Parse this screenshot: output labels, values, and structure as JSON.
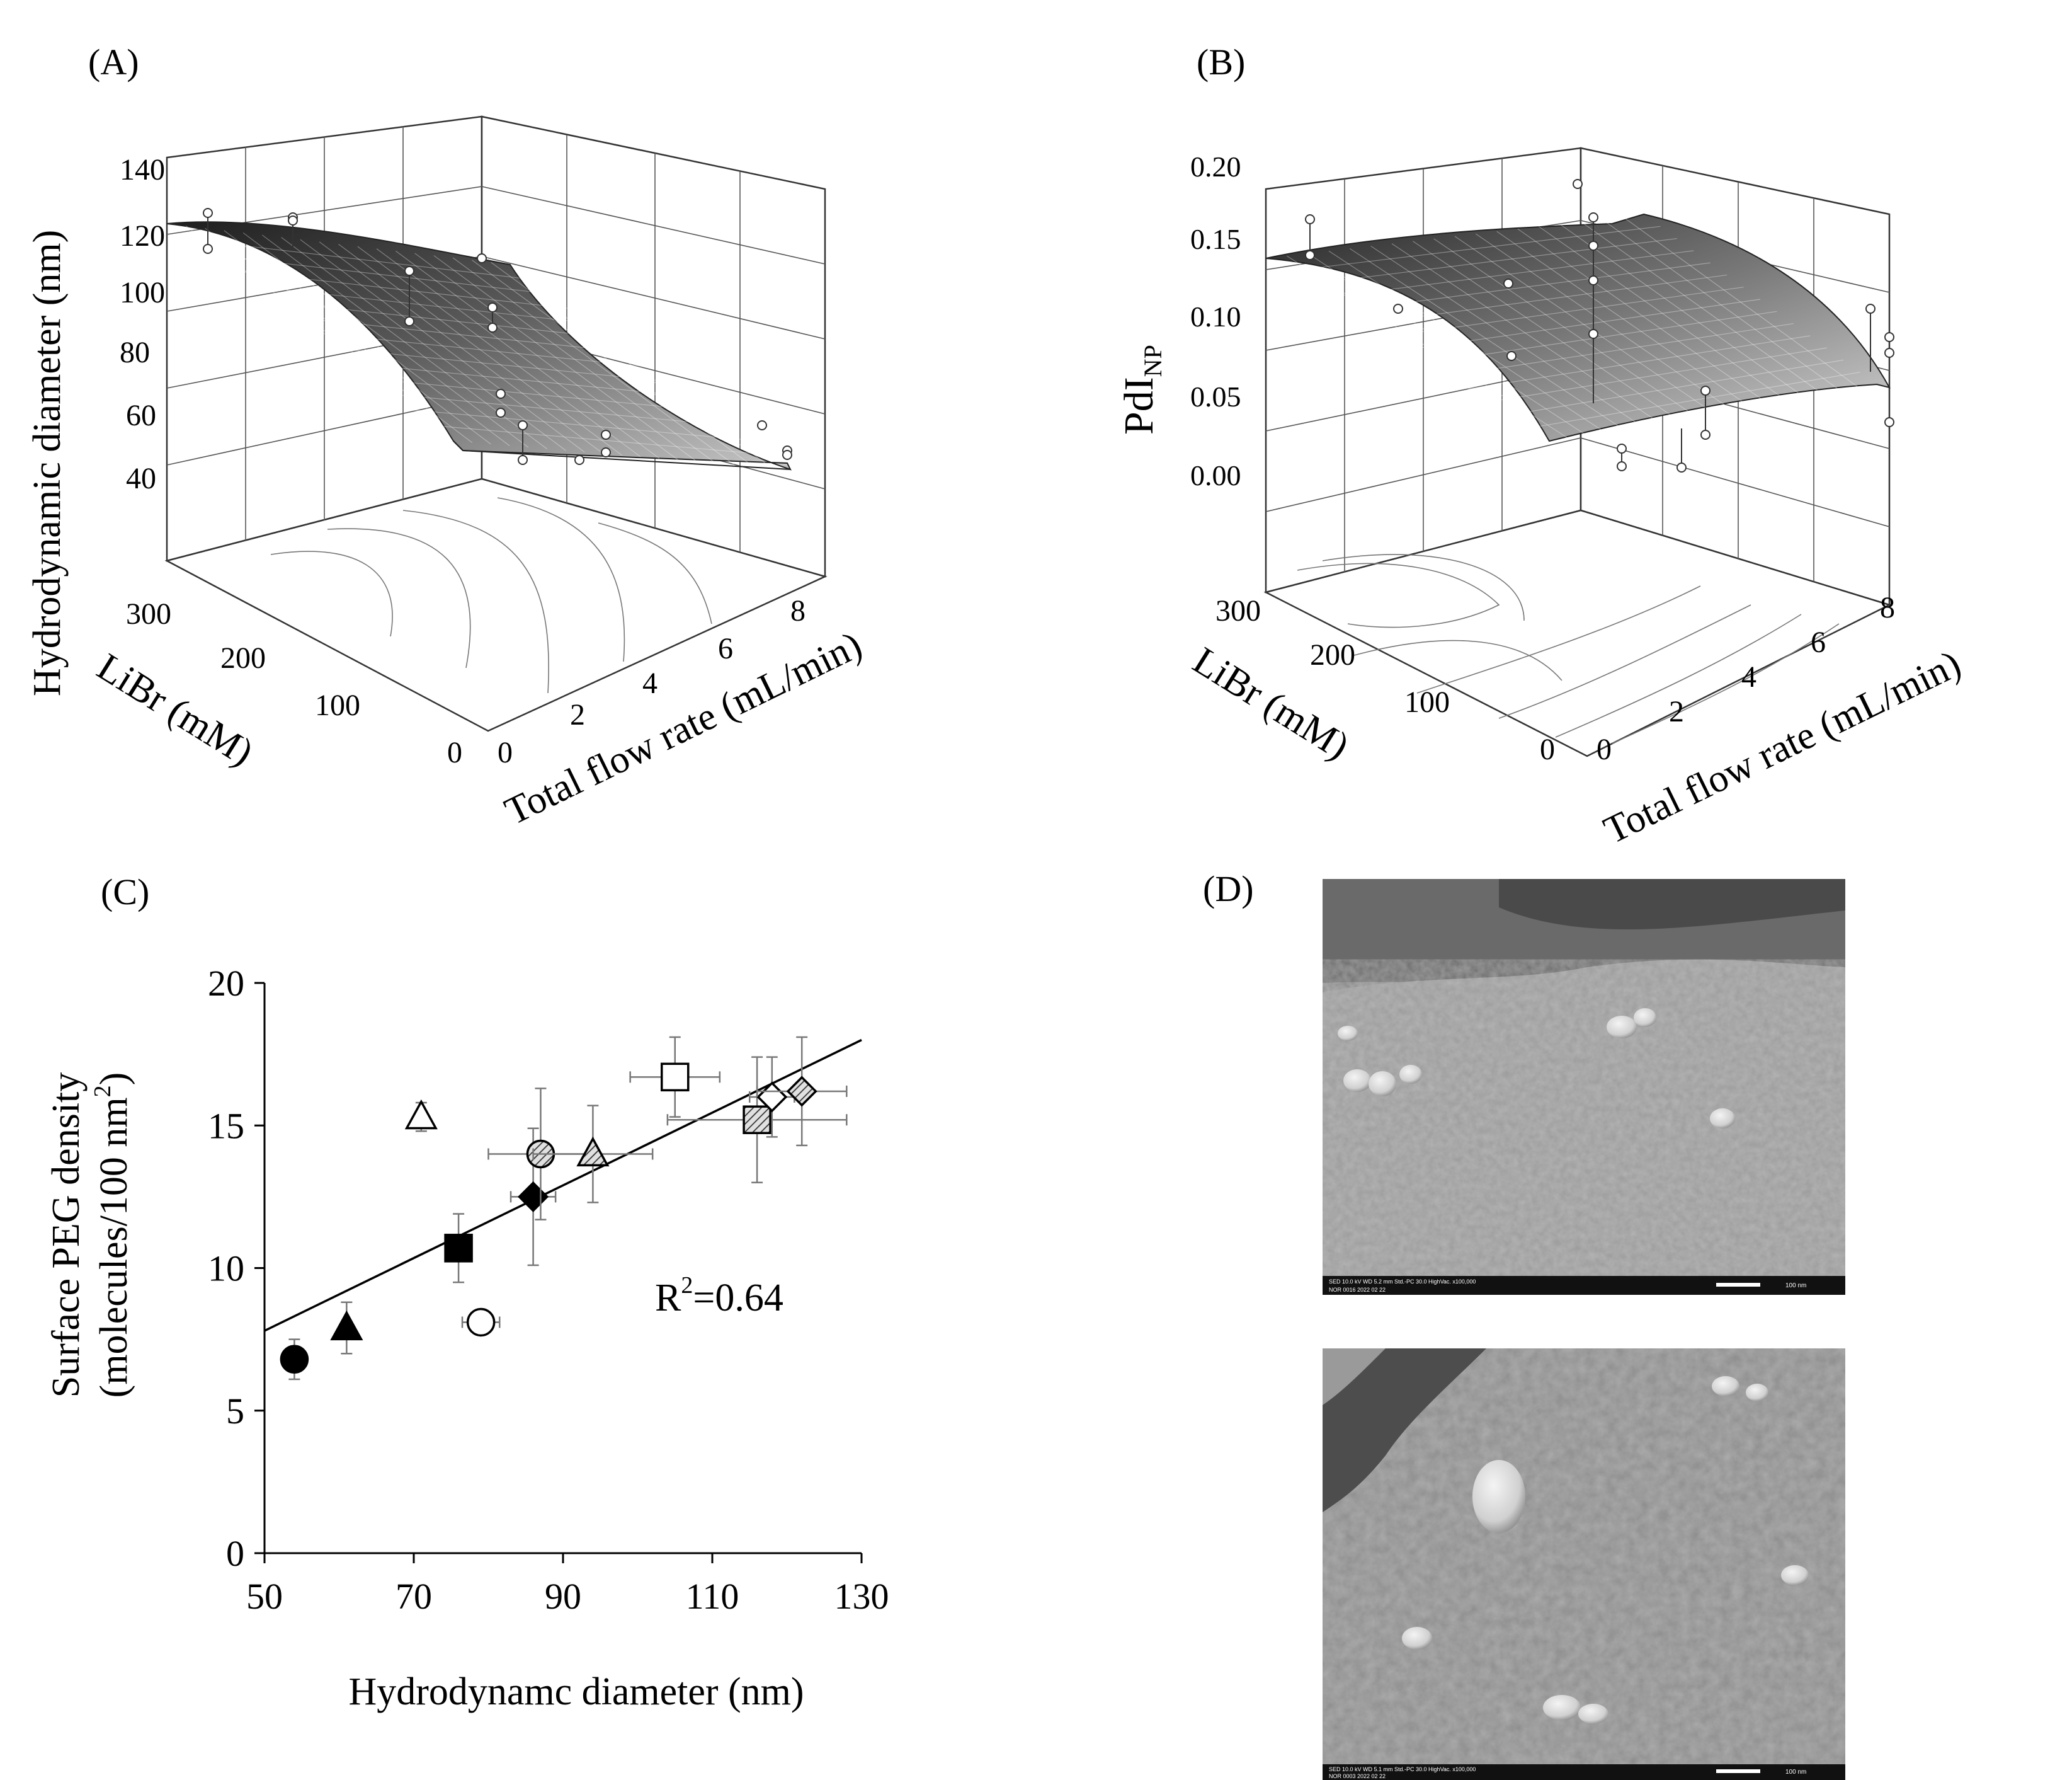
{
  "panels": {
    "a": {
      "label": "(A)"
    },
    "b": {
      "label": "(B)"
    },
    "c": {
      "label": "(C)"
    },
    "d": {
      "label": "(D)"
    }
  },
  "chart_data": [
    {
      "panel": "A",
      "type": "surface3d",
      "z_label": "Hydrodynamic diameter (nm)",
      "y_label": "LiBr (mM)",
      "x_label": "Total flow rate (mL/min)",
      "z_ticks": [
        "40",
        "60",
        "80",
        "100",
        "120",
        "140"
      ],
      "y_ticks": [
        "0",
        "100",
        "200",
        "300"
      ],
      "x_ticks": [
        "0",
        "2",
        "4",
        "6",
        "8"
      ],
      "zlim": [
        40,
        140
      ],
      "ylim": [
        0,
        300
      ],
      "xlim": [
        0,
        8
      ]
    },
    {
      "panel": "B",
      "type": "surface3d",
      "z_label_main": "PdI",
      "z_label_sub": "NP",
      "y_label": "LiBr (mM)",
      "x_label": "Total flow rate (mL/min)",
      "z_ticks": [
        "0.00",
        "0.05",
        "0.10",
        "0.15",
        "0.20"
      ],
      "y_ticks": [
        "0",
        "100",
        "200",
        "300"
      ],
      "x_ticks": [
        "0",
        "2",
        "4",
        "6",
        "8"
      ],
      "zlim": [
        0,
        0.2
      ],
      "ylim": [
        0,
        300
      ],
      "xlim": [
        0,
        8
      ]
    },
    {
      "panel": "C",
      "type": "scatter",
      "xlabel": "Hydrodynamc diameter (nm)",
      "ylabel_line1": "Surface PEG density",
      "ylabel_line2_pre": "(molecules/100 nm",
      "ylabel_line2_sup": "2",
      "ylabel_line2_post": ")",
      "xlim": [
        50,
        130
      ],
      "ylim": [
        0,
        20
      ],
      "x_ticks": [
        "50",
        "70",
        "90",
        "110",
        "130"
      ],
      "y_ticks": [
        "0",
        "5",
        "10",
        "15",
        "20"
      ],
      "annotation_pre": "R",
      "annotation_sup": "2",
      "annotation_post": "=0.64",
      "fit_line": {
        "x": [
          50,
          130
        ],
        "y": [
          7.8,
          18.0
        ]
      },
      "points": [
        {
          "marker": "circle",
          "fill": "#000000",
          "x": 54,
          "y": 6.8,
          "xerr": 0,
          "yerr": 0.7
        },
        {
          "marker": "triangle",
          "fill": "#000000",
          "x": 61,
          "y": 7.9,
          "xerr": 0,
          "yerr": 0.9
        },
        {
          "marker": "triangle",
          "fill": "#ffffff",
          "x": 71,
          "y": 15.3,
          "xerr": 0,
          "yerr": 0.5
        },
        {
          "marker": "square",
          "fill": "#000000",
          "x": 76,
          "y": 10.7,
          "xerr": 0,
          "yerr": 1.2
        },
        {
          "marker": "circle",
          "fill": "#ffffff",
          "x": 79,
          "y": 8.1,
          "xerr": 2.5,
          "yerr": 0.2
        },
        {
          "marker": "diamond",
          "fill": "#000000",
          "x": 86,
          "y": 12.5,
          "xerr": 3.0,
          "yerr": 2.4
        },
        {
          "marker": "circle",
          "fill": "hatch",
          "x": 87,
          "y": 14.0,
          "xerr": 7.0,
          "yerr": 2.3
        },
        {
          "marker": "triangle",
          "fill": "hatch",
          "x": 94,
          "y": 14.0,
          "xerr": 8.0,
          "yerr": 1.7
        },
        {
          "marker": "square",
          "fill": "#ffffff",
          "x": 105,
          "y": 16.7,
          "xerr": 6.0,
          "yerr": 1.4
        },
        {
          "marker": "square",
          "fill": "hatch",
          "x": 116,
          "y": 15.2,
          "xerr": 12.0,
          "yerr": 2.2
        },
        {
          "marker": "diamond",
          "fill": "#ffffff",
          "x": 118,
          "y": 16.0,
          "xerr": 3.0,
          "yerr": 1.4
        },
        {
          "marker": "diamond",
          "fill": "hatch",
          "x": 122,
          "y": 16.2,
          "xerr": 6.0,
          "yerr": 1.9
        }
      ]
    }
  ],
  "sem_images": [
    {
      "meta_line1": "SED    10.0 kV    WD 5.2 mm    Std.-PC 30.0    HighVac.    x100,000",
      "meta_line2": "NOR    0016       2022 02 22",
      "scale_label": "100 nm"
    },
    {
      "meta_line1": "SED    10.0 kV    WD 5.1 mm    Std.-PC 30.0    HighVac.    x100,000",
      "meta_line2": "NOR    0003       2022 02 22",
      "scale_label": "100 nm"
    }
  ]
}
